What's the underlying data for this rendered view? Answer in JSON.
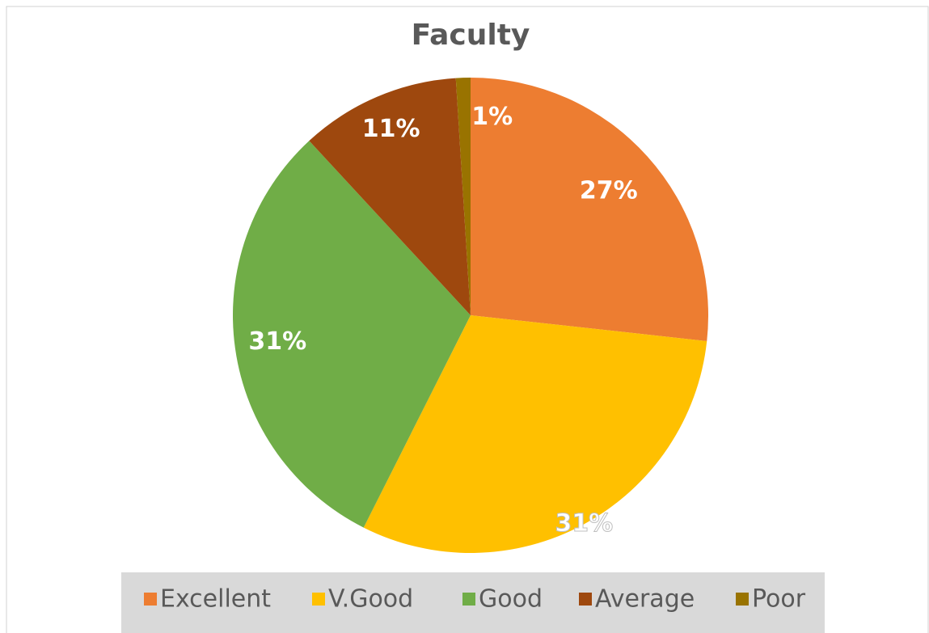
{
  "chart_data": {
    "type": "pie",
    "title": "Faculty",
    "categories": [
      "Excellent",
      "V.Good",
      "Good",
      "Average",
      "Poor"
    ],
    "values": [
      27,
      31,
      31,
      11,
      1
    ],
    "value_labels": [
      "27%",
      "31%",
      "31%",
      "11%",
      "1%"
    ],
    "colors": [
      "#ed7d31",
      "#ffc000",
      "#70ad47",
      "#9e480e",
      "#997300"
    ],
    "legend": "bottom"
  }
}
